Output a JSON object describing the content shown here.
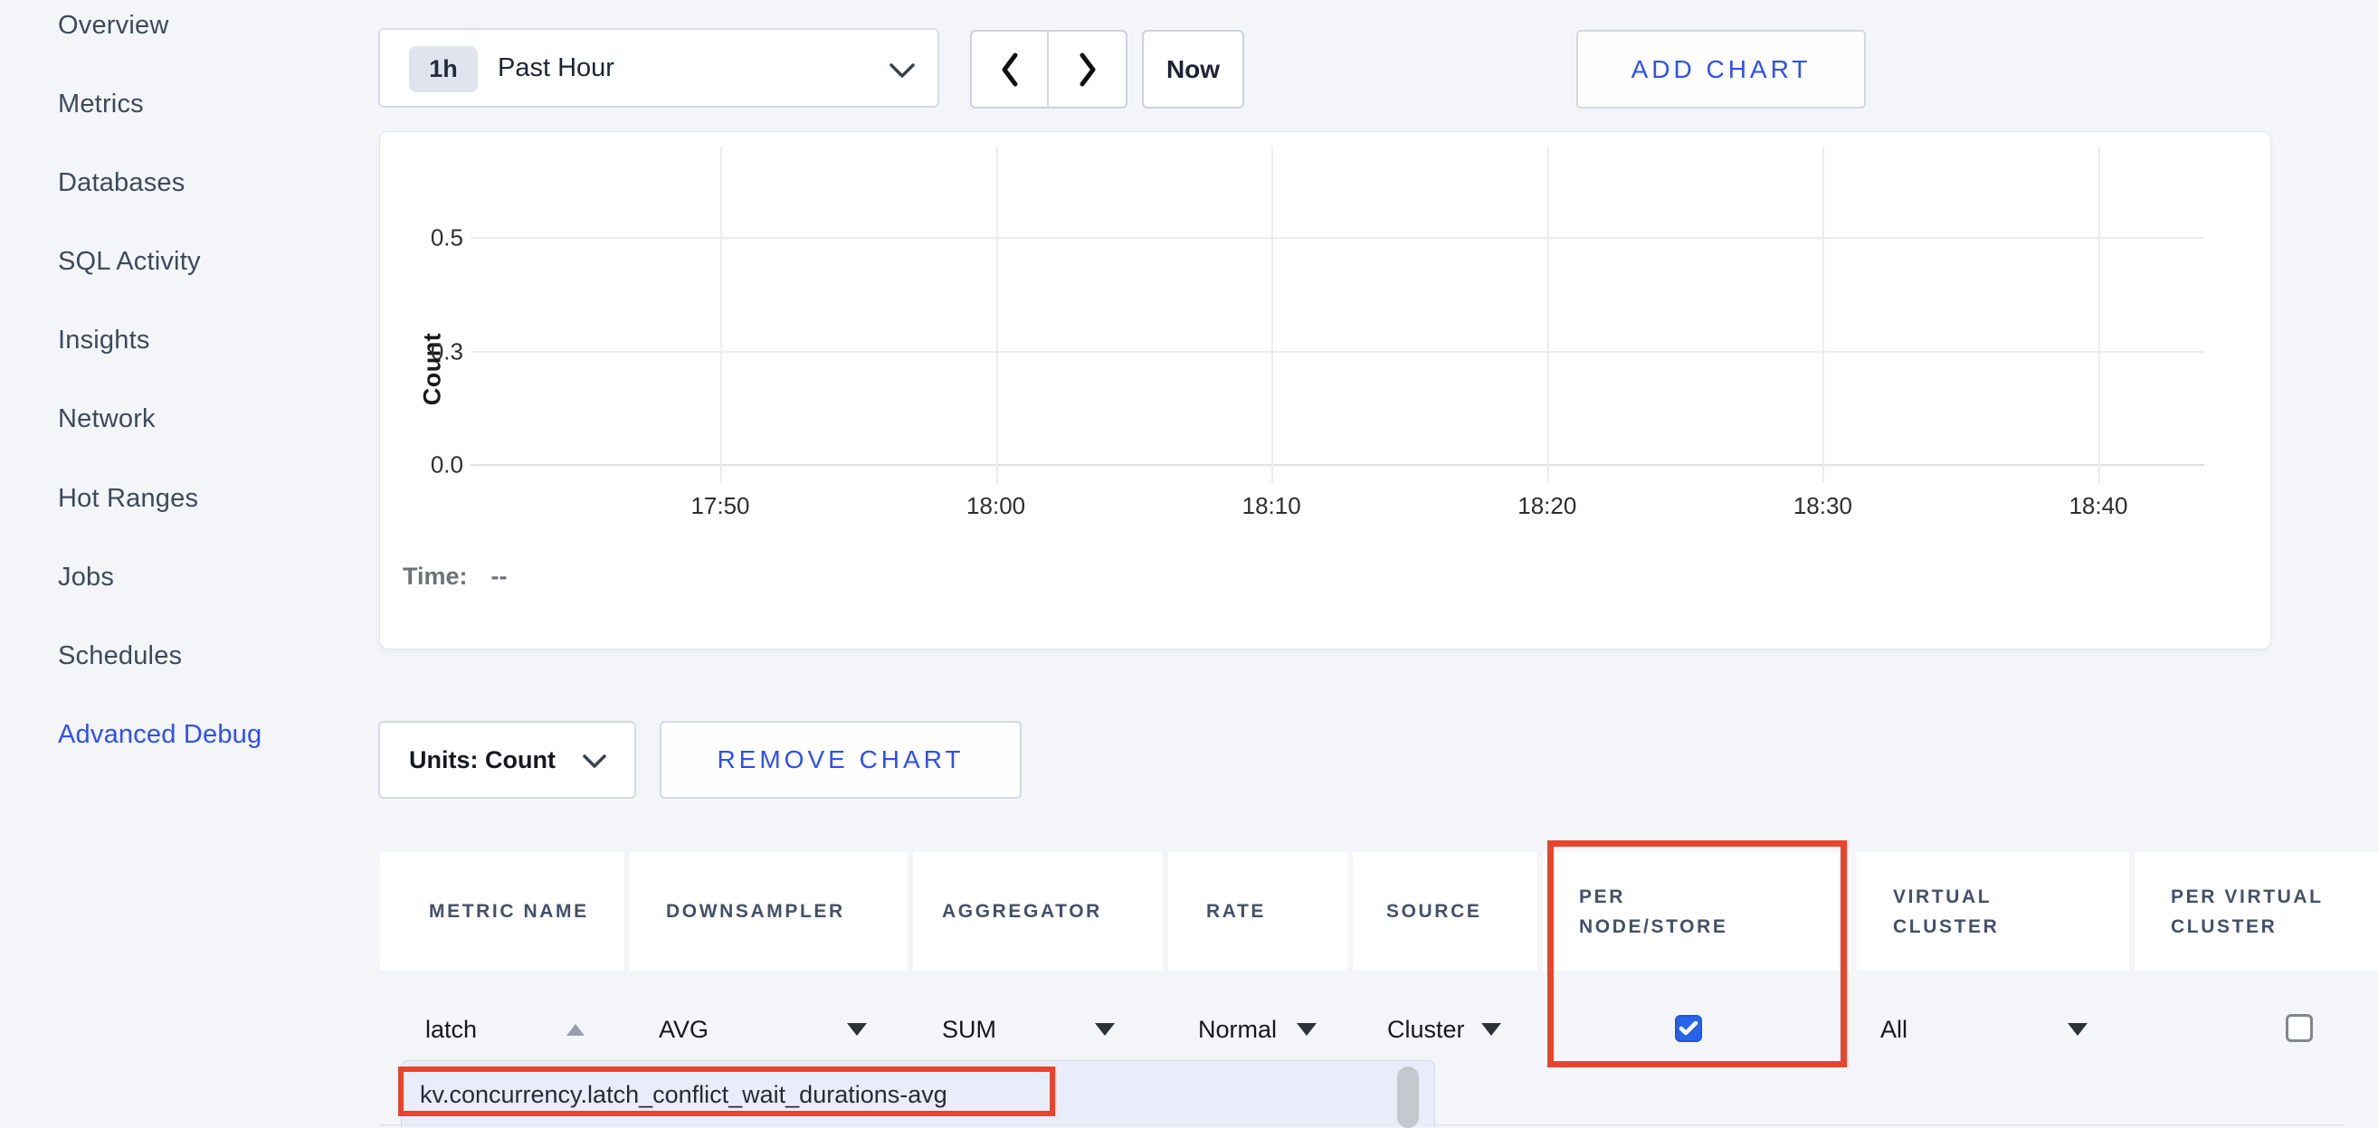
{
  "sidebar": {
    "items": [
      {
        "label": "Overview",
        "active": false
      },
      {
        "label": "Metrics",
        "active": false
      },
      {
        "label": "Databases",
        "active": false
      },
      {
        "label": "SQL Activity",
        "active": false
      },
      {
        "label": "Insights",
        "active": false
      },
      {
        "label": "Network",
        "active": false
      },
      {
        "label": "Hot Ranges",
        "active": false
      },
      {
        "label": "Jobs",
        "active": false
      },
      {
        "label": "Schedules",
        "active": false
      },
      {
        "label": "Advanced Debug",
        "active": true
      }
    ]
  },
  "toolbar": {
    "range_badge": "1h",
    "range_label": "Past Hour",
    "now_label": "Now",
    "add_chart_label": "ADD CHART"
  },
  "chart_data": {
    "type": "line",
    "title": "",
    "xlabel": "",
    "ylabel": "Count",
    "x_ticks": [
      "17:50",
      "18:00",
      "18:10",
      "18:20",
      "18:30",
      "18:40"
    ],
    "y_ticks": [
      "0.5",
      "0.3",
      "0.0"
    ],
    "y_tick_values": [
      0.5,
      0.25,
      0.0
    ],
    "ylim": [
      0,
      0.55
    ],
    "grid": true,
    "legend": false,
    "series": []
  },
  "chart_footer": {
    "time_label": "Time:",
    "time_value": "--"
  },
  "chart_controls": {
    "units_label": "Units: Count",
    "remove_chart_label": "REMOVE CHART"
  },
  "table": {
    "headers": [
      "METRIC NAME",
      "DOWNSAMPLER",
      "AGGREGATOR",
      "RATE",
      "SOURCE",
      "PER NODE/STORE",
      "VIRTUAL CLUSTER",
      "PER VIRTUAL CLUSTER"
    ],
    "row": {
      "metric_name": "latch",
      "downsampler": "AVG",
      "aggregator": "SUM",
      "rate": "Normal",
      "source": "Cluster",
      "per_node_store_checked": true,
      "virtual_cluster": "All",
      "per_virtual_cluster_checked": false
    }
  },
  "metric_dropdown": {
    "items": [
      "kv.concurrency.latch_conflict_wait_durations-avg"
    ]
  },
  "colors": {
    "accent_blue": "#2e4ff4",
    "annotation_red": "#e9452c",
    "checkbox_blue": "#2563eb",
    "active_nav_blue": "#2e4ff4"
  }
}
